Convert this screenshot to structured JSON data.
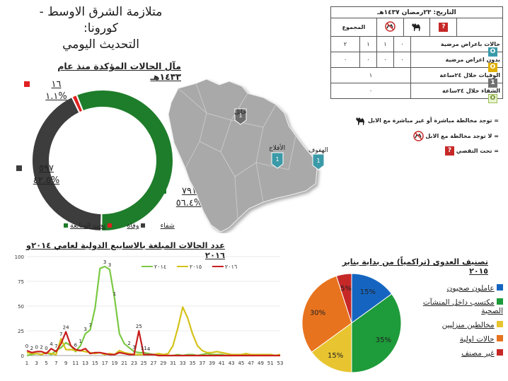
{
  "header": {
    "title_line1": "متلازمة الشرق الاوسط - كورونا:",
    "title_line2": "التحديث اليومي"
  },
  "donut": {
    "section_title": "مآل الحالات المؤكدة منذ عام ١٤٣٣هـ",
    "segments": [
      {
        "name": "شفاء",
        "value": 791,
        "count_label": "٧٩١",
        "pct_label": "٥٦.٤%",
        "color": "#1e7d2a"
      },
      {
        "name": "وفاة",
        "value": 597,
        "count_label": "٥٩٧",
        "pct_label": "٤٢.٥%",
        "color": "#3d3d3d"
      },
      {
        "name": "تحت المتابعة",
        "value": 16,
        "count_label": "١٦",
        "pct_label": "١.١%",
        "color": "#e02020"
      }
    ]
  },
  "stats_table": {
    "date": "التاريخ: ٢٣رمضان ١٤٣٧هـ",
    "total_header": "المجموع",
    "rows": [
      {
        "label": "حالات باعراض مرضية",
        "total": "٢",
        "no_camel": "١",
        "camel": "١",
        "unknown": "٠",
        "icon": "O",
        "icon_color": "#3a9aa8"
      },
      {
        "label": "بدون اعراض مرضية",
        "total": "٠",
        "no_camel": "٠",
        "camel": "٠",
        "unknown": "٠",
        "icon": "O",
        "icon_color": "#e0b000"
      },
      {
        "label": "الوفيات خلال ٢٤ساعة",
        "total": "١",
        "icon": "1",
        "icon_color": "#707070"
      },
      {
        "label": "الشفاء خلال ٢٤ساعة",
        "total": "٠",
        "icon": "O",
        "icon_color": "#e8f3d0"
      }
    ]
  },
  "icon_legend": [
    {
      "text": "= توجد مخالطة مباشرة أو غير مباشرة مع الابل",
      "icon": "camel-icon"
    },
    {
      "text": "= لا توجد مخالطة مع الابل",
      "icon": "no-camel-icon"
    },
    {
      "text": "= تحت التقصي",
      "icon": "question-icon"
    }
  ],
  "map": {
    "markers": [
      {
        "name": "حائل",
        "value": "1"
      },
      {
        "name": "الأفلاج",
        "value": "1"
      },
      {
        "name": "الهفوف",
        "value": "1"
      }
    ]
  },
  "line_chart_title": "عدد الحالات المبلغة بالاسابيع الدولية لعامي ٢٠١٤و ٢٠١٦",
  "pie_title": "تصنيف العدوى (تراكمياً) من بداية يناير ٢٠١٥",
  "chart_data": [
    {
      "type": "line",
      "title": "عدد الحالات المبلغة بالاسابيع الدولية لعامي ٢٠١٤و ٢٠١٦",
      "x": [
        1,
        2,
        3,
        4,
        5,
        6,
        7,
        8,
        9,
        10,
        11,
        12,
        13,
        14,
        15,
        16,
        17,
        18,
        19,
        20,
        21,
        22,
        23,
        24,
        25,
        26,
        27,
        28,
        29,
        30,
        31,
        32,
        33,
        34,
        35,
        36,
        37,
        38,
        39,
        40,
        41,
        42,
        43,
        44,
        45,
        46,
        47,
        48,
        49,
        50,
        51,
        52,
        53
      ],
      "xticks": [
        1,
        3,
        5,
        7,
        9,
        11,
        13,
        15,
        17,
        19,
        21,
        23,
        25,
        27,
        29,
        31,
        33,
        35,
        37,
        39,
        41,
        43,
        45,
        47,
        49,
        51,
        53
      ],
      "ylim": [
        0,
        100
      ],
      "yticks": [
        0,
        25,
        50,
        75,
        100
      ],
      "legend_position": "top",
      "series": [
        {
          "name": "٢٠١٤",
          "color": "#7ac943",
          "values": [
            0,
            1,
            2,
            1,
            3,
            1,
            5,
            8,
            13,
            10,
            4,
            10,
            22,
            26,
            48,
            88,
            90,
            87,
            58,
            22,
            12,
            8,
            4,
            3,
            3,
            2,
            1,
            1,
            1,
            0,
            0,
            1,
            0,
            1,
            1,
            0,
            1,
            2,
            1,
            1,
            1,
            0,
            1,
            0,
            1,
            1,
            0,
            1,
            0,
            1,
            1,
            0,
            1
          ]
        },
        {
          "name": "٢٠١٥",
          "color": "#d4c21a",
          "values": [
            3,
            2,
            2,
            1,
            3,
            2,
            1,
            17,
            6,
            6,
            5,
            5,
            4,
            3,
            2,
            3,
            1,
            2,
            1,
            5,
            3,
            2,
            1,
            1,
            1,
            1,
            1,
            2,
            1,
            2,
            10,
            28,
            49,
            38,
            22,
            10,
            5,
            3,
            3,
            4,
            3,
            2,
            1,
            1,
            1,
            2,
            1,
            1,
            1,
            1,
            1,
            0,
            1
          ]
        },
        {
          "name": "٢٠١٦",
          "color": "#c81e1e",
          "values": [
            5,
            3,
            4,
            4,
            2,
            7,
            4,
            12,
            24,
            10,
            6,
            5,
            7,
            2,
            3,
            3,
            2,
            1,
            1,
            3,
            2,
            1,
            1,
            25,
            1,
            1,
            1,
            0,
            0,
            0,
            0,
            0,
            0,
            0,
            0,
            0,
            0,
            0,
            0,
            0,
            0,
            0,
            0,
            0,
            0,
            0,
            0,
            0,
            0,
            0,
            0,
            0,
            0
          ]
        }
      ],
      "data_labels": [
        {
          "series": "٢٠١٦",
          "x": 9,
          "label": "24"
        },
        {
          "series": "٢٠١٦",
          "x": 24,
          "label": "25"
        },
        {
          "series": "mixed",
          "x": 1,
          "label": "0"
        },
        {
          "series": "mixed",
          "x": 2,
          "label": "2"
        },
        {
          "series": "mixed",
          "x": 3,
          "label": "0"
        },
        {
          "series": "mixed",
          "x": 4,
          "label": "2"
        },
        {
          "series": "mixed",
          "x": 5,
          "label": "0"
        },
        {
          "series": "mixed",
          "x": 6,
          "label": "4"
        },
        {
          "series": "mixed",
          "x": 7,
          "label": "7"
        },
        {
          "series": "mixed",
          "x": 8,
          "label": "7"
        },
        {
          "series": "mixed",
          "x": 11,
          "label": "6"
        },
        {
          "series": "mixed",
          "x": 12,
          "label": "1"
        },
        {
          "series": "mixed",
          "x": 13,
          "label": "3"
        },
        {
          "series": "mixed",
          "x": 14,
          "label": "7"
        },
        {
          "series": "mixed",
          "x": 17,
          "label": "3"
        },
        {
          "series": "mixed",
          "x": 18,
          "label": "3"
        },
        {
          "series": "mixed",
          "x": 19,
          "label": "1"
        },
        {
          "series": "mixed",
          "x": 22,
          "label": "2"
        },
        {
          "series": "mixed",
          "x": 23,
          "label": "3"
        },
        {
          "series": "mixed",
          "x": 25,
          "label": "11"
        },
        {
          "series": "mixed",
          "x": 26,
          "label": "4"
        }
      ]
    },
    {
      "type": "pie",
      "title": "تصنيف العدوى (تراكمياً) من بداية يناير ٢٠١٥",
      "categories": [
        "عاملون صحيون",
        "مكتسب داخل المنشآت الصحية",
        "مخالطين منزليين",
        "حالات اولية",
        "غير مصنف"
      ],
      "values": [
        15,
        35,
        15,
        30,
        5
      ],
      "labels": [
        "15%",
        "35%",
        "15%",
        "30%",
        "5%"
      ],
      "colors": [
        "#1565c0",
        "#1e9b3a",
        "#e8c530",
        "#e8731e",
        "#c62828"
      ],
      "legend_position": "right"
    }
  ]
}
